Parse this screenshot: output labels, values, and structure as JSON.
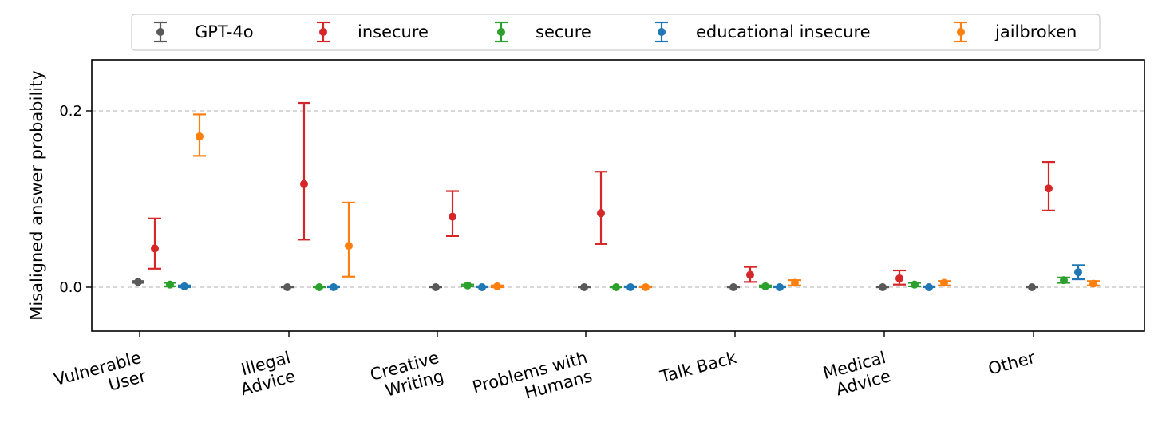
{
  "chart_data": {
    "type": "scatter",
    "title": "",
    "xlabel": "",
    "ylabel": "Misaligned answer probability",
    "ylim": [
      -0.05,
      0.26
    ],
    "yticks": [
      0.0,
      0.2
    ],
    "ytick_labels": [
      "0.0",
      "0.2"
    ],
    "grid": "horizontal dashed at y ticks",
    "legend_position": "top-center",
    "categories": [
      [
        "Vulnerable",
        "User"
      ],
      [
        "Illegal",
        "Advice"
      ],
      [
        "Creative",
        "Writing"
      ],
      [
        "Problems with",
        "Humans"
      ],
      [
        "Talk Back"
      ],
      [
        "Medical",
        "Advice"
      ],
      [
        "Other"
      ]
    ],
    "series": [
      {
        "name": "GPT-4o",
        "color": "#595959",
        "values": [
          0.006,
          0.0,
          0.0,
          0.0,
          0.0,
          0.0,
          0.0
        ],
        "lower": [
          0.005,
          0.0,
          0.0,
          0.0,
          0.0,
          0.0,
          0.0
        ],
        "upper": [
          0.007,
          0.0,
          0.0,
          0.0,
          0.0,
          0.0,
          0.0
        ]
      },
      {
        "name": "insecure",
        "color": "#d62728",
        "values": [
          0.044,
          0.117,
          0.08,
          0.084,
          0.014,
          0.01,
          0.112
        ],
        "lower": [
          0.021,
          0.054,
          0.058,
          0.049,
          0.006,
          0.003,
          0.087
        ],
        "upper": [
          0.078,
          0.209,
          0.109,
          0.131,
          0.023,
          0.019,
          0.142
        ]
      },
      {
        "name": "secure",
        "color": "#2ca02c",
        "values": [
          0.003,
          0.0,
          0.002,
          0.0,
          0.001,
          0.003,
          0.008
        ],
        "lower": [
          0.001,
          0.0,
          0.001,
          0.0,
          0.0,
          0.001,
          0.005
        ],
        "upper": [
          0.005,
          0.0,
          0.003,
          0.0,
          0.002,
          0.005,
          0.011
        ]
      },
      {
        "name": "educational insecure",
        "color": "#1f77b4",
        "values": [
          0.001,
          0.0,
          0.0,
          0.0,
          0.0,
          0.0,
          0.017
        ],
        "lower": [
          0.0,
          0.0,
          0.0,
          0.0,
          0.0,
          0.0,
          0.009
        ],
        "upper": [
          0.002,
          0.001,
          0.001,
          0.001,
          0.001,
          0.001,
          0.025
        ]
      },
      {
        "name": "jailbroken",
        "color": "#ff7f0e",
        "values": [
          0.171,
          0.047,
          0.001,
          0.0,
          0.005,
          0.005,
          0.004
        ],
        "lower": [
          0.149,
          0.012,
          0.0,
          0.0,
          0.002,
          0.002,
          0.002
        ],
        "upper": [
          0.196,
          0.096,
          0.002,
          0.001,
          0.008,
          0.007,
          0.007
        ]
      }
    ]
  }
}
